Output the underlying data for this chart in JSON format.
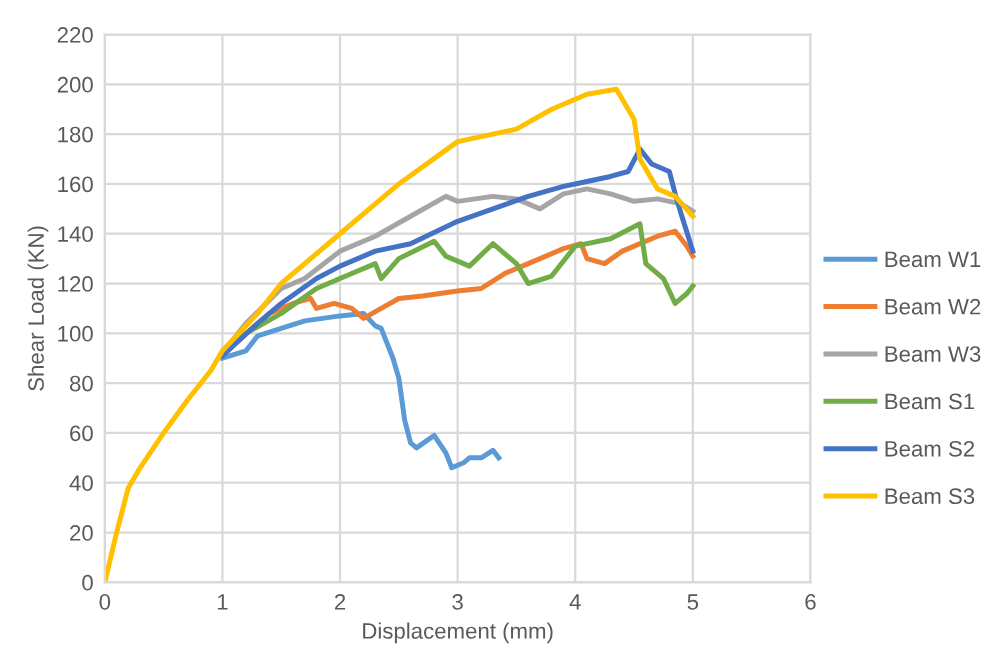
{
  "chart_data": {
    "type": "line",
    "xlabel": "Displacement (mm)",
    "ylabel": "Shear Load (KN)",
    "xlim": [
      0,
      6
    ],
    "xticks": [
      0,
      1,
      2,
      3,
      4,
      5,
      6
    ],
    "ylim": [
      0,
      220
    ],
    "yticks": [
      0,
      20,
      40,
      60,
      80,
      100,
      120,
      140,
      160,
      180,
      200,
      220
    ],
    "grid": true,
    "legend": "right",
    "marker": "none",
    "line_style": "solid",
    "series": [
      {
        "name": "Beam W1",
        "color": "#5b9bd5",
        "x": [
          1.0,
          1.2,
          1.3,
          1.5,
          1.7,
          2.0,
          2.2,
          2.3,
          2.35,
          2.45,
          2.5,
          2.55,
          2.6,
          2.65,
          2.8,
          2.9,
          2.95,
          3.05,
          3.1,
          3.2,
          3.3,
          3.35
        ],
        "values": [
          90,
          93,
          99,
          102,
          105,
          107,
          108,
          103,
          102,
          90,
          82,
          65,
          56,
          54,
          59,
          52,
          46,
          48,
          50,
          50,
          53,
          50
        ]
      },
      {
        "name": "Beam W2",
        "color": "#ed7d31",
        "x": [
          1.0,
          1.2,
          1.4,
          1.6,
          1.75,
          1.8,
          1.95,
          2.1,
          2.2,
          2.35,
          2.5,
          2.7,
          3.0,
          3.2,
          3.4,
          3.6,
          3.9,
          4.05,
          4.1,
          4.25,
          4.4,
          4.7,
          4.85,
          4.95,
          5.0
        ],
        "values": [
          91,
          100,
          108,
          112,
          114,
          110,
          112,
          110,
          106,
          110,
          114,
          115,
          117,
          118,
          124,
          128,
          134,
          136,
          130,
          128,
          133,
          139,
          141,
          135,
          131
        ]
      },
      {
        "name": "Beam W3",
        "color": "#a5a5a5",
        "x": [
          1.0,
          1.2,
          1.5,
          1.7,
          2.0,
          2.3,
          2.6,
          2.9,
          3.0,
          3.3,
          3.5,
          3.7,
          3.9,
          4.1,
          4.3,
          4.5,
          4.7,
          4.9,
          5.0
        ],
        "values": [
          92,
          104,
          118,
          122,
          133,
          139,
          147,
          155,
          153,
          155,
          154,
          150,
          156,
          158,
          156,
          153,
          154,
          152,
          149
        ]
      },
      {
        "name": "Beam S1",
        "color": "#70ad47",
        "x": [
          1.0,
          1.2,
          1.5,
          1.8,
          1.9,
          2.1,
          2.3,
          2.35,
          2.5,
          2.8,
          2.9,
          3.1,
          3.3,
          3.5,
          3.6,
          3.8,
          4.0,
          4.3,
          4.55,
          4.6,
          4.75,
          4.85,
          4.95,
          5.0
        ],
        "values": [
          92,
          100,
          108,
          118,
          120,
          124,
          128,
          122,
          130,
          137,
          131,
          127,
          136,
          128,
          120,
          123,
          135,
          138,
          144,
          128,
          122,
          112,
          116,
          119
        ]
      },
      {
        "name": "Beam S2",
        "color": "#4472c4",
        "x": [
          1.0,
          1.3,
          1.5,
          1.8,
          2.0,
          2.3,
          2.6,
          3.0,
          3.3,
          3.6,
          3.9,
          4.1,
          4.3,
          4.45,
          4.55,
          4.65,
          4.8,
          4.85,
          4.9,
          5.0
        ],
        "values": [
          91,
          104,
          112,
          122,
          127,
          133,
          136,
          145,
          150,
          155,
          159,
          161,
          163,
          165,
          174,
          168,
          165,
          156,
          148,
          133
        ]
      },
      {
        "name": "Beam S3",
        "color": "#ffc000",
        "x": [
          0,
          0.05,
          0.1,
          0.2,
          0.3,
          0.5,
          0.7,
          0.9,
          1.0,
          1.3,
          1.5,
          2.0,
          2.5,
          3.0,
          3.5,
          3.8,
          4.1,
          4.35,
          4.5,
          4.55,
          4.7,
          4.85,
          5.0
        ],
        "values": [
          0,
          10,
          20,
          38,
          46,
          60,
          73,
          85,
          93,
          108,
          120,
          140,
          160,
          177,
          182,
          190,
          196,
          198,
          186,
          170,
          158,
          155,
          147
        ]
      }
    ]
  }
}
